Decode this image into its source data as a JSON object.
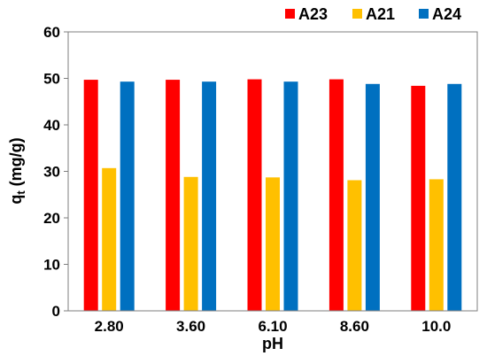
{
  "chart_data": {
    "type": "bar",
    "categories": [
      "2.80",
      "3.60",
      "6.10",
      "8.60",
      "10.0"
    ],
    "series": [
      {
        "name": "A23",
        "color": "#ff0000",
        "values": [
          49.7,
          49.7,
          49.8,
          49.8,
          48.4
        ]
      },
      {
        "name": "A21",
        "color": "#ffc000",
        "values": [
          30.7,
          28.8,
          28.7,
          28.1,
          28.3
        ]
      },
      {
        "name": "A24",
        "color": "#0070c0",
        "values": [
          49.3,
          49.3,
          49.3,
          48.8,
          48.8
        ]
      }
    ],
    "xlabel": "pH",
    "ylabel_main": "q",
    "ylabel_sub": "t",
    "ylabel_unit": " (mg/g)",
    "ylim": [
      0,
      60
    ],
    "yticks": [
      "0",
      "10",
      "20",
      "30",
      "40",
      "50",
      "60"
    ],
    "grid": false,
    "legend_position": "top-right"
  }
}
